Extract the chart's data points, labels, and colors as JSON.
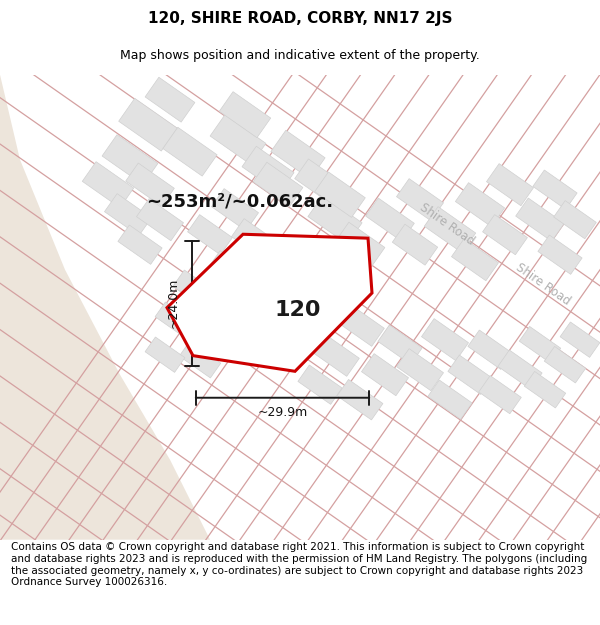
{
  "title": "120, SHIRE ROAD, CORBY, NN17 2JS",
  "subtitle": "Map shows position and indicative extent of the property.",
  "footer": "Contains OS data © Crown copyright and database right 2021. This information is subject to Crown copyright and database rights 2023 and is reproduced with the permission of HM Land Registry. The polygons (including the associated geometry, namely x, y co-ordinates) are subject to Crown copyright and database rights 2023 Ordnance Survey 100026316.",
  "area_label": "~253m²/~0.062ac.",
  "width_label": "~29.9m",
  "height_label": "~24.0m",
  "plot_number": "120",
  "map_bg": "#f5f5f5",
  "beige_color": "#ede5db",
  "road_line": "#d4a0a0",
  "building_fill": "#e2e2e2",
  "building_edge": "#d0d0d0",
  "highlight_fill": "#ffffff",
  "highlight_edge": "#cc0000",
  "dim_line_color": "#1a1a1a",
  "road_label_color": "#b0b0b0",
  "title_fontsize": 11,
  "subtitle_fontsize": 9,
  "footer_fontsize": 7.5,
  "area_fontsize": 13,
  "plot_num_fontsize": 16
}
